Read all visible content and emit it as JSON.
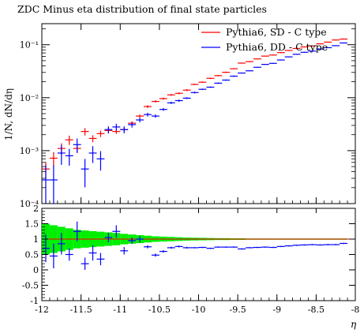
{
  "chart_data": {
    "type": "scatter",
    "title": "ZDC Minus eta distribution of final state particles",
    "xlabel": "η",
    "ylabel": "1/N, dN/dη",
    "xlim": [
      -12,
      -8
    ],
    "top_panel": {
      "yscale": "log",
      "ylim": [
        0.0001,
        0.25
      ],
      "ytick_labels": [
        "10⁻⁴",
        "10⁻³",
        "10⁻²",
        "10⁻¹"
      ]
    },
    "bottom_panel": {
      "ylim": [
        -1,
        2
      ],
      "ytick_labels": [
        "-1",
        "-0.5",
        "0",
        "0.5",
        "1",
        "1.5",
        "2"
      ],
      "band_color": "#00ee00"
    },
    "xtick_labels": [
      "-12",
      "-11.5",
      "-11",
      "-10.5",
      "-10",
      "-9.5",
      "-9",
      "-8.5",
      "-8"
    ],
    "legend_position": "top-right",
    "series": [
      {
        "name": "Pythia6, SD - C type",
        "color": "#ff0000",
        "x": [
          -11.95,
          -11.85,
          -11.75,
          -11.65,
          -11.55,
          -11.45,
          -11.35,
          -11.25,
          -11.15,
          -11.05,
          -10.95,
          -10.85,
          -10.75,
          -10.65,
          -10.55,
          -10.45,
          -10.35,
          -10.25,
          -10.15,
          -10.05,
          -9.95,
          -9.85,
          -9.75,
          -9.65,
          -9.55,
          -9.45,
          -9.35,
          -9.25,
          -9.15,
          -9.05,
          -8.95,
          -8.85,
          -8.75,
          -8.65,
          -8.55,
          -8.45,
          -8.35,
          -8.25,
          -8.15
        ],
        "y": [
          0.00045,
          0.00072,
          0.0011,
          0.0016,
          0.0011,
          0.0023,
          0.0017,
          0.0021,
          0.0024,
          0.0023,
          0.0025,
          0.0033,
          0.0045,
          0.0068,
          0.0085,
          0.0096,
          0.0113,
          0.0121,
          0.0139,
          0.0178,
          0.0196,
          0.0232,
          0.0261,
          0.0302,
          0.0352,
          0.045,
          0.048,
          0.054,
          0.061,
          0.064,
          0.071,
          0.078,
          0.085,
          0.091,
          0.095,
          0.104,
          0.112,
          0.123,
          0.128
        ]
      },
      {
        "name": "Pythia6, DD - C type",
        "color": "#0000ff",
        "x": [
          -11.95,
          -11.85,
          -11.75,
          -11.65,
          -11.55,
          -11.45,
          -11.35,
          -11.25,
          -11.15,
          -11.05,
          -10.95,
          -10.85,
          -10.75,
          -10.65,
          -10.55,
          -10.45,
          -10.35,
          -10.25,
          -10.15,
          -10.05,
          -9.95,
          -9.85,
          -9.75,
          -9.65,
          -9.55,
          -9.45,
          -9.35,
          -9.25,
          -9.15,
          -9.05,
          -8.95,
          -8.85,
          -8.75,
          -8.65,
          -8.55,
          -8.45,
          -8.35,
          -8.25,
          -8.15
        ],
        "y": [
          0.00028,
          0.00028,
          0.0009,
          0.0008,
          0.0013,
          0.00045,
          0.0009,
          0.0007,
          0.0025,
          0.0028,
          0.0025,
          0.0031,
          0.0038,
          0.0048,
          0.0045,
          0.006,
          0.008,
          0.0088,
          0.0098,
          0.0125,
          0.0144,
          0.0158,
          0.0188,
          0.0215,
          0.0255,
          0.0292,
          0.0322,
          0.0375,
          0.0425,
          0.0445,
          0.0515,
          0.059,
          0.066,
          0.072,
          0.076,
          0.083,
          0.088,
          0.096,
          0.108
        ]
      }
    ],
    "ratio": {
      "x": [
        -11.95,
        -11.85,
        -11.75,
        -11.65,
        -11.55,
        -11.45,
        -11.35,
        -11.25,
        -11.15,
        -11.05,
        -10.95,
        -10.85,
        -10.75,
        -10.65,
        -10.55,
        -10.45,
        -10.35,
        -10.25,
        -10.15,
        -10.05,
        -9.95,
        -9.85,
        -9.75,
        -9.65,
        -9.55,
        -9.45,
        -9.35,
        -9.25,
        -9.15,
        -9.05,
        -8.95,
        -8.85,
        -8.75,
        -8.65,
        -8.55,
        -8.45,
        -8.35,
        -8.25,
        -8.15
      ],
      "y": [
        0.7,
        0.45,
        0.85,
        0.5,
        1.25,
        0.2,
        0.55,
        0.35,
        1.05,
        1.25,
        0.62,
        0.95,
        1.0,
        0.75,
        0.48,
        0.6,
        0.72,
        0.76,
        0.72,
        0.72,
        0.73,
        0.7,
        0.74,
        0.74,
        0.74,
        0.68,
        0.72,
        0.73,
        0.74,
        0.73,
        0.76,
        0.78,
        0.8,
        0.81,
        0.82,
        0.81,
        0.82,
        0.82,
        0.86
      ],
      "yerr": [
        0.45,
        0.4,
        0.35,
        0.2,
        0.32,
        0.2,
        0.25,
        0.2,
        0.15,
        0.2,
        0.12,
        0.1,
        0.1,
        0.05,
        0.05,
        0.04,
        0.03,
        0.03,
        0.03,
        0.02,
        0.02,
        0.02,
        0.02,
        0.02,
        0.02,
        0.02,
        0.02,
        0.02,
        0.02,
        0.02,
        0.02,
        0.02,
        0.02,
        0.02,
        0.02,
        0.02,
        0.02,
        0.02,
        0.02
      ],
      "band_halfwidth": [
        0.5,
        0.45,
        0.4,
        0.35,
        0.3,
        0.28,
        0.26,
        0.24,
        0.22,
        0.2,
        0.17,
        0.15,
        0.13,
        0.11,
        0.09,
        0.08,
        0.07,
        0.06,
        0.05,
        0.045,
        0.04,
        0.035,
        0.03,
        0.03,
        0.025,
        0.025,
        0.02,
        0.02,
        0.02,
        0.02,
        0.02,
        0.02,
        0.02,
        0.02,
        0.02,
        0.02,
        0.02,
        0.02,
        0.02
      ]
    }
  }
}
